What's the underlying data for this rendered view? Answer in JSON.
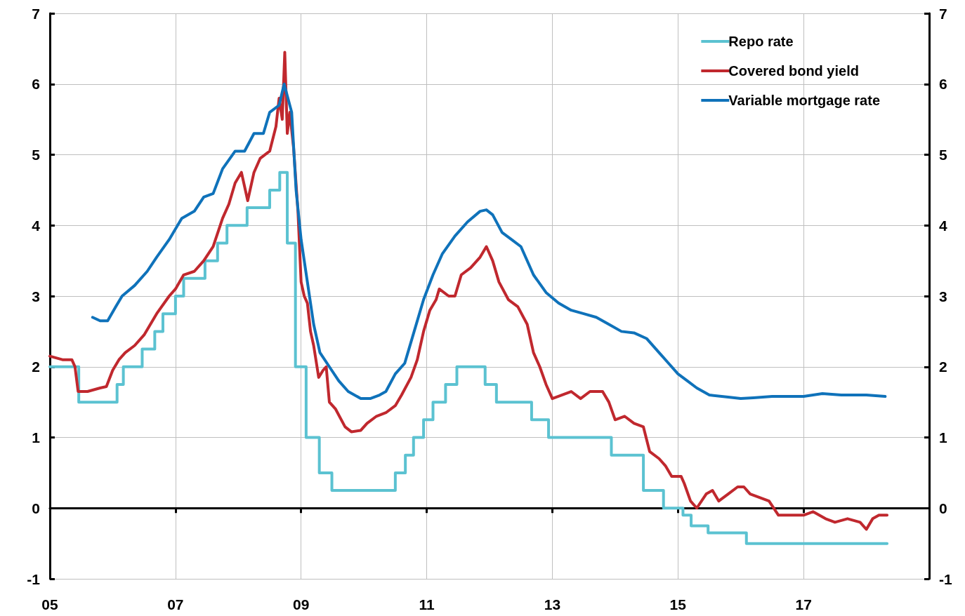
{
  "chart_data": {
    "type": "line",
    "xlim": [
      2005,
      2019
    ],
    "xticks": [
      {
        "value": 2005,
        "label": "05"
      },
      {
        "value": 2007,
        "label": "07"
      },
      {
        "value": 2009,
        "label": "09"
      },
      {
        "value": 2011,
        "label": "11"
      },
      {
        "value": 2013,
        "label": "13"
      },
      {
        "value": 2015,
        "label": "15"
      },
      {
        "value": 2017,
        "label": "17"
      }
    ],
    "ylim": [
      -1,
      7
    ],
    "yticks": [
      -1,
      0,
      1,
      2,
      3,
      4,
      5,
      6,
      7
    ],
    "y2lim": [
      -1,
      7
    ],
    "y2ticks": [
      -1,
      0,
      1,
      2,
      3,
      4,
      5,
      6,
      7
    ],
    "grid": true,
    "legend": "top right",
    "marker": "none",
    "line_style": "solid",
    "series": [
      {
        "name": "Repo rate",
        "type": "step",
        "color": "#5bc2d1",
        "x": [
          2005,
          2005.46,
          2006.07,
          2006.17,
          2006.47,
          2006.67,
          2006.8,
          2007.0,
          2007.13,
          2007.47,
          2007.67,
          2007.82,
          2008.14,
          2008.5,
          2008.66,
          2008.78,
          2008.91,
          2009.08,
          2009.29,
          2009.49,
          2010.5,
          2010.66,
          2010.79,
          2010.95,
          2011.1,
          2011.3,
          2011.48,
          2011.93,
          2012.11,
          2012.67,
          2012.94,
          2013.94,
          2014.45,
          2014.77,
          2015.08,
          2015.21,
          2015.48,
          2016.09,
          2018.33
        ],
        "values": [
          2.0,
          1.5,
          1.75,
          2.0,
          2.25,
          2.5,
          2.75,
          3.0,
          3.25,
          3.5,
          3.75,
          4.0,
          4.25,
          4.5,
          4.75,
          3.75,
          2.0,
          1.0,
          0.5,
          0.25,
          0.5,
          0.75,
          1.0,
          1.25,
          1.5,
          1.75,
          2.0,
          1.75,
          1.5,
          1.25,
          1.0,
          0.75,
          0.25,
          0.0,
          -0.1,
          -0.25,
          -0.35,
          -0.5,
          -0.5
        ]
      },
      {
        "name": "Covered bond yield",
        "color": "#c0282e",
        "x": [
          2005,
          2005.2,
          2005.35,
          2005.4,
          2005.45,
          2005.6,
          2005.8,
          2005.9,
          2006.0,
          2006.1,
          2006.2,
          2006.35,
          2006.5,
          2006.7,
          2006.9,
          2007.0,
          2007.13,
          2007.3,
          2007.45,
          2007.6,
          2007.75,
          2007.85,
          2007.95,
          2008.05,
          2008.15,
          2008.25,
          2008.35,
          2008.5,
          2008.6,
          2008.65,
          2008.7,
          2008.74,
          2008.78,
          2008.82,
          2008.88,
          2008.95,
          2009.0,
          2009.05,
          2009.1,
          2009.15,
          2009.2,
          2009.28,
          2009.35,
          2009.4,
          2009.45,
          2009.55,
          2009.7,
          2009.8,
          2009.95,
          2010.05,
          2010.2,
          2010.35,
          2010.5,
          2010.6,
          2010.75,
          2010.85,
          2010.95,
          2011.05,
          2011.15,
          2011.2,
          2011.35,
          2011.45,
          2011.55,
          2011.7,
          2011.85,
          2011.95,
          2012.05,
          2012.15,
          2012.3,
          2012.45,
          2012.6,
          2012.7,
          2012.8,
          2012.9,
          2013.0,
          2013.15,
          2013.3,
          2013.45,
          2013.6,
          2013.8,
          2013.9,
          2014.0,
          2014.15,
          2014.3,
          2014.45,
          2014.55,
          2014.7,
          2014.8,
          2014.9,
          2015.05,
          2015.1,
          2015.2,
          2015.3,
          2015.45,
          2015.55,
          2015.65,
          2015.8,
          2015.95,
          2016.05,
          2016.15,
          2016.3,
          2016.45,
          2016.6,
          2016.8,
          2017.0,
          2017.15,
          2017.35,
          2017.5,
          2017.7,
          2017.9,
          2018.0,
          2018.1,
          2018.2,
          2018.33
        ],
        "values": [
          2.15,
          2.1,
          2.1,
          2.0,
          1.65,
          1.65,
          1.7,
          1.72,
          1.95,
          2.1,
          2.2,
          2.3,
          2.45,
          2.75,
          3.0,
          3.1,
          3.3,
          3.35,
          3.5,
          3.7,
          4.1,
          4.3,
          4.6,
          4.75,
          4.35,
          4.75,
          4.95,
          5.05,
          5.4,
          5.8,
          5.5,
          6.45,
          5.3,
          5.6,
          5.1,
          4.2,
          3.2,
          3.0,
          2.9,
          2.5,
          2.3,
          1.85,
          1.95,
          2.0,
          1.5,
          1.4,
          1.15,
          1.08,
          1.1,
          1.2,
          1.3,
          1.35,
          1.45,
          1.6,
          1.85,
          2.1,
          2.5,
          2.8,
          2.95,
          3.1,
          3.0,
          3.0,
          3.3,
          3.4,
          3.55,
          3.7,
          3.5,
          3.2,
          2.95,
          2.85,
          2.6,
          2.2,
          2.0,
          1.75,
          1.55,
          1.6,
          1.65,
          1.55,
          1.65,
          1.65,
          1.5,
          1.25,
          1.3,
          1.2,
          1.15,
          0.8,
          0.7,
          0.6,
          0.45,
          0.45,
          0.35,
          0.1,
          0.0,
          0.2,
          0.25,
          0.1,
          0.2,
          0.3,
          0.3,
          0.2,
          0.15,
          0.1,
          -0.1,
          -0.1,
          -0.1,
          -0.05,
          -0.15,
          -0.2,
          -0.15,
          -0.2,
          -0.3,
          -0.15,
          -0.1,
          -0.1
        ]
      },
      {
        "name": "Variable mortgage rate",
        "color": "#0f72ba",
        "x": [
          2005.68,
          2005.8,
          2005.92,
          2006.05,
          2006.15,
          2006.35,
          2006.55,
          2006.7,
          2006.9,
          2007.1,
          2007.3,
          2007.45,
          2007.6,
          2007.75,
          2007.95,
          2008.1,
          2008.25,
          2008.4,
          2008.5,
          2008.65,
          2008.73,
          2008.85,
          2008.92,
          2009.0,
          2009.1,
          2009.2,
          2009.3,
          2009.45,
          2009.6,
          2009.75,
          2009.95,
          2010.1,
          2010.25,
          2010.35,
          2010.5,
          2010.65,
          2010.8,
          2010.95,
          2011.1,
          2011.25,
          2011.45,
          2011.65,
          2011.85,
          2011.95,
          2012.05,
          2012.2,
          2012.35,
          2012.5,
          2012.7,
          2012.9,
          2013.1,
          2013.3,
          2013.5,
          2013.7,
          2013.9,
          2014.1,
          2014.3,
          2014.5,
          2014.7,
          2014.85,
          2015.0,
          2015.15,
          2015.3,
          2015.5,
          2015.8,
          2016.0,
          2016.2,
          2016.5,
          2017.0,
          2017.3,
          2017.6,
          2018.0,
          2018.3
        ],
        "values": [
          2.7,
          2.65,
          2.65,
          2.85,
          3.0,
          3.15,
          3.35,
          3.55,
          3.8,
          4.1,
          4.2,
          4.4,
          4.45,
          4.8,
          5.05,
          5.05,
          5.3,
          5.3,
          5.6,
          5.7,
          6.0,
          5.6,
          4.5,
          3.8,
          3.2,
          2.6,
          2.2,
          2.0,
          1.8,
          1.65,
          1.55,
          1.55,
          1.6,
          1.65,
          1.9,
          2.05,
          2.5,
          2.95,
          3.3,
          3.6,
          3.85,
          4.05,
          4.2,
          4.22,
          4.15,
          3.9,
          3.8,
          3.7,
          3.3,
          3.05,
          2.9,
          2.8,
          2.75,
          2.7,
          2.6,
          2.5,
          2.48,
          2.4,
          2.2,
          2.05,
          1.9,
          1.8,
          1.7,
          1.6,
          1.57,
          1.55,
          1.56,
          1.58,
          1.58,
          1.62,
          1.6,
          1.6,
          1.58
        ]
      }
    ]
  }
}
